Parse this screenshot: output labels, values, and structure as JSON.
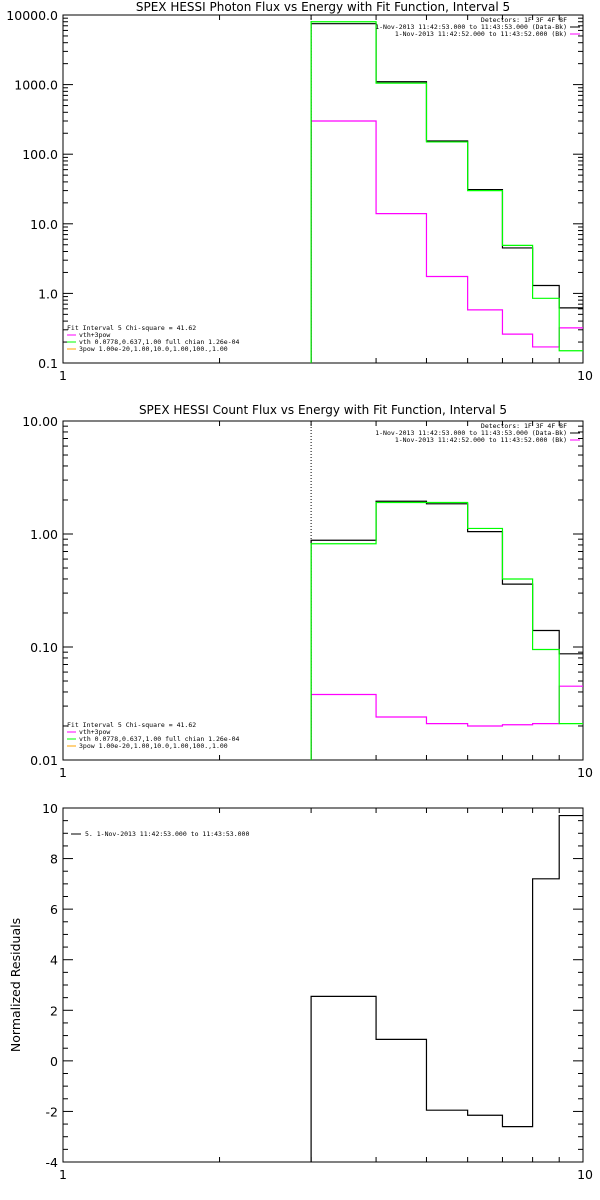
{
  "chart_data": [
    {
      "type": "line",
      "title": "SPEX HESSI Photon Flux vs Energy with Fit Function, Interval 5",
      "xlabel": "",
      "ylabel": "",
      "xscale": "log",
      "yscale": "log",
      "xlim": [
        1,
        10
      ],
      "ylim": [
        0.1,
        10000
      ],
      "x_tick_labels": [
        "1",
        "10"
      ],
      "y_tick_labels": [
        "0.1",
        "1.0",
        "10.0",
        "100.0",
        "1000.0",
        "10000.0"
      ],
      "x_bin_edges": [
        3,
        4,
        5,
        6,
        7,
        8,
        9,
        10
      ],
      "vline_x": 3,
      "legend_top_right": [
        "Detectors: 1F 3F 4F 8F",
        "1-Nov-2013 11:42:53.000 to 11:43:53.000 (Data-Bk)",
        "1-Nov-2013 11:42:52.000 to 11:43:52.000 (Bk)"
      ],
      "legend_bottom_left": [
        "Fit Interval 5   Chi-square = 41.62",
        "vth+3pow",
        "vth 0.0778,0.637,1.00  full chian 1.26e-04",
        "3pow 1.00e-20,1.00,10.0,1.00,100.,1.00"
      ],
      "series": [
        {
          "name": "Data-Bk",
          "color": "#000000",
          "values": [
            7500,
            1100,
            155,
            31,
            4.5,
            1.3,
            0.62
          ]
        },
        {
          "name": "Bk",
          "color": "#ff00ff",
          "values": [
            300,
            14,
            1.75,
            0.58,
            0.26,
            0.17,
            0.32
          ]
        },
        {
          "name": "vth+3pow",
          "color": "#00ff00",
          "values": [
            8000,
            1050,
            150,
            30,
            4.9,
            0.85,
            0.15
          ]
        }
      ]
    },
    {
      "type": "line",
      "title": "SPEX HESSI Count Flux vs Energy with Fit Function, Interval 5",
      "xlabel": "",
      "ylabel": "",
      "xscale": "log",
      "yscale": "log",
      "xlim": [
        1,
        10
      ],
      "ylim": [
        0.01,
        10
      ],
      "x_tick_labels": [
        "1",
        "10"
      ],
      "y_tick_labels": [
        "0.01",
        "0.10",
        "1.00",
        "10.00"
      ],
      "x_bin_edges": [
        3,
        4,
        5,
        6,
        7,
        8,
        9,
        10
      ],
      "vline_x": 3,
      "legend_top_right": [
        "Detectors: 1F 3F 4F 8F",
        "1-Nov-2013 11:42:53.000 to 11:43:53.000 (Data-Bk)",
        "1-Nov-2013 11:42:52.000 to 11:43:52.000 (Bk)"
      ],
      "legend_bottom_left": [
        "Fit Interval 5   Chi-square = 41.62",
        "vth+3pow",
        "vth 0.0778,0.637,1.00  full chian 1.26e-04",
        "3pow 1.00e-20,1.00,10.0,1.00,100.,1.00"
      ],
      "series": [
        {
          "name": "Data-Bk",
          "color": "#000000",
          "values": [
            0.88,
            1.95,
            1.85,
            1.05,
            0.36,
            0.14,
            0.087
          ]
        },
        {
          "name": "Bk",
          "color": "#ff00ff",
          "values": [
            0.038,
            0.024,
            0.021,
            0.02,
            0.0205,
            0.021,
            0.045
          ]
        },
        {
          "name": "vth+3pow",
          "color": "#00ff00",
          "values": [
            0.82,
            1.9,
            1.9,
            1.12,
            0.4,
            0.095,
            0.021
          ]
        }
      ]
    },
    {
      "type": "line",
      "title": "",
      "xlabel": "",
      "ylabel": "Normalized Residuals",
      "xscale": "log",
      "yscale": "linear",
      "xlim": [
        1,
        10
      ],
      "ylim": [
        -4,
        10
      ],
      "x_tick_labels": [
        "1",
        "10"
      ],
      "y_tick_labels": [
        "-4",
        "-2",
        "0",
        "2",
        "4",
        "6",
        "8",
        "10"
      ],
      "x_bin_edges": [
        3,
        4,
        5,
        6,
        7,
        8,
        9,
        10
      ],
      "legend_top_left": [
        "5. 1-Nov-2013 11:42:53.000 to 11:43:53.000"
      ],
      "series": [
        {
          "name": "",
          "color": "#000000",
          "values": [
            2.55,
            0.85,
            -1.95,
            -2.15,
            -2.6,
            7.2,
            9.7
          ]
        }
      ]
    }
  ]
}
